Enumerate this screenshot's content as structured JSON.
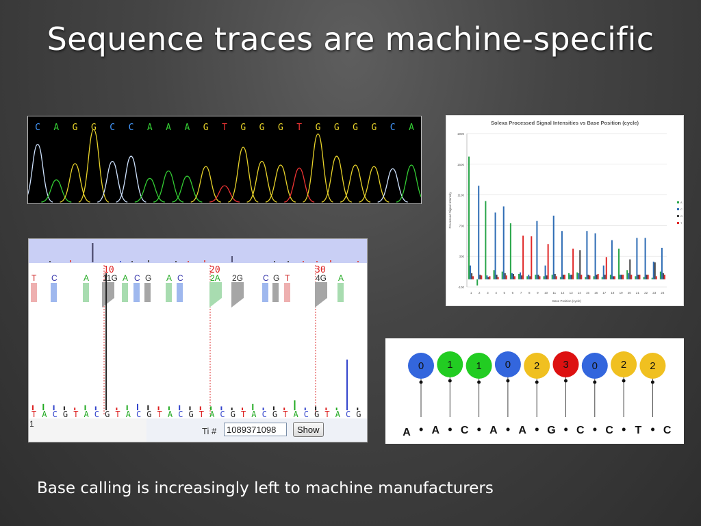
{
  "slide": {
    "title": "Sequence traces are machine-specific",
    "caption": "Base calling is increasingly left to machine manufacturers"
  },
  "colors": {
    "A": "#33cc33",
    "C": "#4499ff",
    "G": "#e8d32a",
    "T": "#ee3333"
  },
  "chromatogram": {
    "bases": [
      "C",
      "A",
      "G",
      "G",
      "C",
      "C",
      "A",
      "A",
      "A",
      "G",
      "T",
      "G",
      "G",
      "G",
      "T",
      "G",
      "G",
      "G",
      "G",
      "C",
      "A"
    ]
  },
  "chart_data": [
    {
      "type": "bar",
      "title": "Solexa Processed Signal Intensities vs Base Position (cycle)",
      "xlabel": "Base Position (cycle)",
      "ylabel": "Processed Signal Intensity",
      "ylim": [
        -100,
        1900
      ],
      "yticks": [
        -100,
        300,
        700,
        1100,
        1500,
        1900
      ],
      "categories": [
        1,
        2,
        3,
        4,
        5,
        6,
        7,
        8,
        9,
        10,
        11,
        12,
        13,
        14,
        15,
        16,
        17,
        18,
        19,
        20,
        21,
        22,
        23,
        24
      ],
      "legend_position": "right",
      "series": [
        {
          "name": "A",
          "color": "#2aa64a",
          "values": [
            1600,
            -80,
            1020,
            120,
            100,
            730,
            70,
            40,
            60,
            40,
            60,
            30,
            80,
            90,
            30,
            40,
            30,
            60,
            400,
            120,
            40,
            30,
            20,
            100
          ]
        },
        {
          "name": "C",
          "color": "#2f6db5",
          "values": [
            180,
            1220,
            50,
            870,
            950,
            80,
            90,
            60,
            760,
            180,
            830,
            630,
            60,
            80,
            630,
            600,
            180,
            510,
            60,
            80,
            540,
            540,
            230,
            410
          ]
        },
        {
          "name": "G",
          "color": "#444444",
          "values": [
            80,
            60,
            30,
            60,
            80,
            70,
            50,
            40,
            60,
            50,
            70,
            60,
            60,
            380,
            60,
            60,
            60,
            40,
            60,
            260,
            60,
            60,
            220,
            80
          ]
        },
        {
          "name": "T",
          "color": "#e02a2a",
          "values": [
            40,
            50,
            40,
            30,
            50,
            40,
            570,
            560,
            40,
            460,
            40,
            60,
            400,
            60,
            50,
            70,
            290,
            40,
            60,
            60,
            60,
            60,
            40,
            60
          ]
        }
      ]
    }
  ],
  "flowgram": {
    "top_calls": [
      {
        "text": "T",
        "base": "T",
        "x": 4
      },
      {
        "text": "C",
        "base": "C",
        "x": 33
      },
      {
        "text": "A",
        "base": "A",
        "x": 80
      },
      {
        "text": "11G",
        "base": "G",
        "x": 108
      },
      {
        "text": "A",
        "base": "A",
        "x": 137
      },
      {
        "text": "C",
        "base": "C",
        "x": 154
      },
      {
        "text": "G",
        "base": "G",
        "x": 170
      },
      {
        "text": "A",
        "base": "A",
        "x": 201
      },
      {
        "text": "C",
        "base": "C",
        "x": 217
      },
      {
        "text": "2A",
        "base": "A",
        "x": 265
      },
      {
        "text": "2G",
        "base": "G",
        "x": 297
      },
      {
        "text": "C",
        "base": "C",
        "x": 342
      },
      {
        "text": "G",
        "base": "G",
        "x": 357
      },
      {
        "text": "T",
        "base": "T",
        "x": 374
      },
      {
        "text": "4G",
        "base": "G",
        "x": 419
      },
      {
        "text": "A",
        "base": "A",
        "x": 452
      }
    ],
    "position_markers": [
      {
        "label": "10",
        "x": 110
      },
      {
        "label": "20",
        "x": 265
      },
      {
        "label": "30",
        "x": 419
      }
    ],
    "bottom_sequence": [
      "T",
      "A",
      "C",
      "G",
      "T",
      "A",
      "C",
      "G",
      "T",
      "A",
      "C",
      "G",
      "T",
      "A",
      "C",
      "G",
      "T",
      "A",
      "C",
      "G",
      "T",
      "A",
      "C",
      "G",
      "T",
      "A",
      "C",
      "G",
      "T",
      "A",
      "C",
      "G"
    ],
    "flow_values": [
      0.3,
      0.4,
      0.3,
      0.2,
      0.1,
      0.3,
      0.2,
      11,
      0.1,
      0.3,
      0.4,
      0.3,
      0.2,
      0.2,
      0.3,
      0.2,
      0.2,
      0.2,
      0.2,
      0.1,
      0.1,
      0.4,
      0.1,
      0.2,
      0.1,
      0.7,
      0.1,
      0.2,
      0.1,
      0.1,
      4,
      0.1
    ],
    "index_label": "1",
    "ti_label": "Ti #",
    "ti_value": "1089371098",
    "show_label": "Show"
  },
  "colorspace": {
    "digits": [
      "0",
      "1",
      "1",
      "0",
      "2",
      "3",
      "0",
      "2",
      "2"
    ],
    "circle_colors": [
      "#3366dd",
      "#22cc22",
      "#22cc22",
      "#3366dd",
      "#f0c020",
      "#dd1111",
      "#3366dd",
      "#f0c020",
      "#f0c020"
    ],
    "bases": [
      "A",
      "A",
      "C",
      "A",
      "A",
      "G",
      "C",
      "C",
      "T",
      "C"
    ]
  }
}
